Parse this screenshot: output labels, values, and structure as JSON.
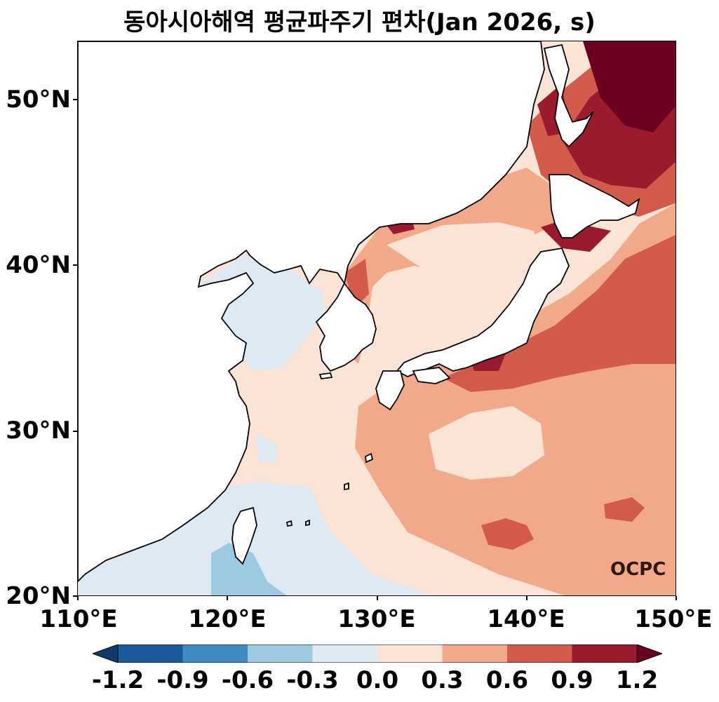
{
  "title": "동아시아해역 평균파주기 편차(Jan 2026, s)",
  "logo": "OCPC",
  "axes": {
    "lat_labels": [
      "50°N",
      "40°N",
      "30°N",
      "20°N"
    ],
    "lon_labels": [
      "110°E",
      "120°E",
      "130°E",
      "140°E",
      "150°E"
    ]
  },
  "map_data": {
    "lon_range": [
      110,
      150
    ],
    "lat_range": [
      20,
      53.5
    ],
    "variable": "mean wave period anomaly",
    "unit": "s"
  },
  "colorbar": {
    "ticks": [
      "-1.2",
      "-0.9",
      "-0.6",
      "-0.3",
      "0.0",
      "0.3",
      "0.6",
      "0.9",
      "1.2"
    ],
    "levels": [
      -1.2,
      -0.9,
      -0.6,
      -0.3,
      0.0,
      0.3,
      0.6,
      0.9,
      1.2
    ],
    "colors": [
      "#1b5a9b",
      "#3f8ac3",
      "#9ccae1",
      "#ddeaf3",
      "#fbe3d6",
      "#f2a98a",
      "#d25b4b",
      "#9b1b2e"
    ],
    "under_color": "#0f3a6b",
    "over_color": "#6b0020",
    "extend": "both"
  }
}
